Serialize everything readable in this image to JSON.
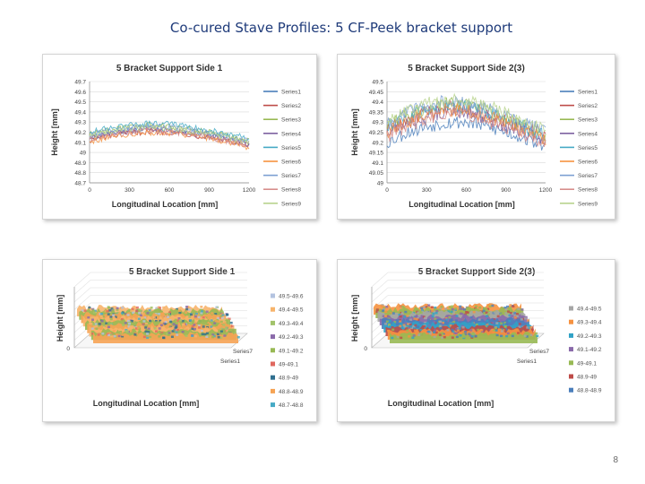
{
  "slide": {
    "title": "Co-cured Stave Profiles: 5 CF-Peek bracket support",
    "page_number": "8"
  },
  "chart_data": [
    {
      "type": "line",
      "title": "5 Bracket Support Side 1",
      "xlabel": "Longitudinal Location [mm]",
      "ylabel": "Height [mm]",
      "xlim": [
        0,
        1200
      ],
      "ylim": [
        48.7,
        49.7
      ],
      "x_ticks": [
        "0",
        "300",
        "600",
        "900",
        "1200"
      ],
      "y_ticks": [
        "49.7",
        "49.6",
        "49.5",
        "49.4",
        "49.3",
        "49.2",
        "49.1",
        "49",
        "48.9",
        "48.8",
        "48.7"
      ],
      "series": [
        {
          "name": "Series1",
          "color": "#4a7ebb",
          "x": [
            0,
            150,
            300,
            450,
            600,
            750,
            900,
            1050,
            1200
          ],
          "values": [
            49.15,
            49.19,
            49.22,
            49.24,
            49.23,
            49.2,
            49.18,
            49.14,
            49.1
          ]
        },
        {
          "name": "Series2",
          "color": "#be4b48",
          "x": [
            0,
            150,
            300,
            450,
            600,
            750,
            900,
            1050,
            1200
          ],
          "values": [
            49.12,
            49.16,
            49.19,
            49.21,
            49.2,
            49.18,
            49.15,
            49.11,
            49.06
          ]
        },
        {
          "name": "Series3",
          "color": "#98b954",
          "x": [
            0,
            150,
            300,
            450,
            600,
            750,
            900,
            1050,
            1200
          ],
          "values": [
            49.18,
            49.22,
            49.25,
            49.27,
            49.26,
            49.23,
            49.2,
            49.16,
            49.12
          ]
        },
        {
          "name": "Series4",
          "color": "#7d60a0",
          "x": [
            0,
            150,
            300,
            450,
            600,
            750,
            900,
            1050,
            1200
          ],
          "values": [
            49.14,
            49.18,
            49.21,
            49.23,
            49.22,
            49.19,
            49.16,
            49.12,
            49.08
          ]
        },
        {
          "name": "Series5",
          "color": "#46aac5",
          "x": [
            0,
            150,
            300,
            450,
            600,
            750,
            900,
            1050,
            1200
          ],
          "values": [
            49.2,
            49.24,
            49.27,
            49.29,
            49.28,
            49.25,
            49.22,
            49.18,
            49.14
          ]
        },
        {
          "name": "Series6",
          "color": "#f69240",
          "x": [
            0,
            150,
            300,
            450,
            600,
            750,
            900,
            1050,
            1200
          ],
          "values": [
            49.11,
            49.15,
            49.18,
            49.2,
            49.19,
            49.17,
            49.14,
            49.1,
            49.05
          ]
        },
        {
          "name": "Series7",
          "color": "#7c9fd2",
          "x": [
            0,
            150,
            300,
            450,
            600,
            750,
            900,
            1050,
            1200
          ],
          "values": [
            49.17,
            49.21,
            49.24,
            49.26,
            49.25,
            49.22,
            49.19,
            49.15,
            49.11
          ]
        },
        {
          "name": "Series8",
          "color": "#d78e8c",
          "x": [
            0,
            150,
            300,
            450,
            600,
            750,
            900,
            1050,
            1200
          ],
          "values": [
            49.13,
            49.17,
            49.2,
            49.22,
            49.21,
            49.18,
            49.15,
            49.11,
            49.07
          ]
        },
        {
          "name": "Series9",
          "color": "#b8d38d",
          "x": [
            0,
            150,
            300,
            450,
            600,
            750,
            900,
            1050,
            1200
          ],
          "values": [
            49.16,
            49.2,
            49.23,
            49.25,
            49.24,
            49.21,
            49.18,
            49.14,
            49.1
          ]
        }
      ],
      "legend": "right"
    },
    {
      "type": "line",
      "title": "5 Bracket Support Side 2(3)",
      "xlabel": "Longitudinal Location [mm]",
      "ylabel": "Height [mm]",
      "xlim": [
        0,
        1200
      ],
      "ylim": [
        49.0,
        49.5
      ],
      "x_ticks": [
        "0",
        "300",
        "600",
        "900",
        "1200"
      ],
      "y_ticks": [
        "49.5",
        "49.45",
        "49.4",
        "49.35",
        "49.3",
        "49.25",
        "49.2",
        "49.15",
        "49.1",
        "49.05",
        "49"
      ],
      "series": [
        {
          "name": "Series1",
          "color": "#4a7ebb",
          "x": [
            0,
            150,
            300,
            450,
            600,
            750,
            900,
            1050,
            1200
          ],
          "values": [
            49.2,
            49.25,
            49.28,
            49.3,
            49.3,
            49.28,
            49.25,
            49.22,
            49.18
          ]
        },
        {
          "name": "Series2",
          "color": "#be4b48",
          "x": [
            0,
            150,
            300,
            450,
            600,
            750,
            900,
            1050,
            1200
          ],
          "values": [
            49.26,
            49.31,
            49.35,
            49.37,
            49.37,
            49.34,
            49.3,
            49.27,
            49.23
          ]
        },
        {
          "name": "Series3",
          "color": "#98b954",
          "x": [
            0,
            150,
            300,
            450,
            600,
            750,
            900,
            1050,
            1200
          ],
          "values": [
            49.28,
            49.33,
            49.37,
            49.39,
            49.38,
            49.36,
            49.32,
            49.28,
            49.24
          ]
        },
        {
          "name": "Series4",
          "color": "#7d60a0",
          "x": [
            0,
            150,
            300,
            450,
            600,
            750,
            900,
            1050,
            1200
          ],
          "values": [
            49.24,
            49.29,
            49.33,
            49.35,
            49.35,
            49.32,
            49.28,
            49.25,
            49.21
          ]
        },
        {
          "name": "Series5",
          "color": "#46aac5",
          "x": [
            0,
            150,
            300,
            450,
            600,
            750,
            900,
            1050,
            1200
          ],
          "values": [
            49.27,
            49.32,
            49.36,
            49.38,
            49.37,
            49.35,
            49.31,
            49.27,
            49.23
          ]
        },
        {
          "name": "Series6",
          "color": "#f69240",
          "x": [
            0,
            150,
            300,
            450,
            600,
            750,
            900,
            1050,
            1200
          ],
          "values": [
            49.25,
            49.3,
            49.34,
            49.36,
            49.36,
            49.33,
            49.29,
            49.26,
            49.22
          ]
        },
        {
          "name": "Series7",
          "color": "#7c9fd2",
          "x": [
            0,
            150,
            300,
            450,
            600,
            750,
            900,
            1050,
            1200
          ],
          "values": [
            49.29,
            49.34,
            49.38,
            49.4,
            49.39,
            49.37,
            49.33,
            49.29,
            49.25
          ]
        },
        {
          "name": "Series8",
          "color": "#d78e8c",
          "x": [
            0,
            150,
            300,
            450,
            600,
            750,
            900,
            1050,
            1200
          ],
          "values": [
            49.23,
            49.28,
            49.32,
            49.34,
            49.34,
            49.31,
            49.27,
            49.24,
            49.2
          ]
        },
        {
          "name": "Series9",
          "color": "#b8d38d",
          "x": [
            0,
            150,
            300,
            450,
            600,
            750,
            900,
            1050,
            1200
          ],
          "values": [
            49.3,
            49.35,
            49.39,
            49.41,
            49.4,
            49.38,
            49.34,
            49.3,
            49.26
          ]
        }
      ],
      "legend": "right"
    },
    {
      "type": "area",
      "subtype": "3d-surface",
      "title": "5 Bracket Support Side 1",
      "xlabel": "Longitudinal Location [mm]",
      "ylabel": "Height [mm]",
      "zero_label": "0",
      "depth_labels": [
        "Series7",
        "Series1"
      ],
      "bands": [
        {
          "range": "49.5-49.6",
          "color": "#b3c3e0"
        },
        {
          "range": "49.4-49.5",
          "color": "#f7b46b"
        },
        {
          "range": "49.3-49.4",
          "color": "#a2c36b"
        },
        {
          "range": "49.2-49.3",
          "color": "#8a6aaa"
        },
        {
          "range": "49.1-49.2",
          "color": "#98b954"
        },
        {
          "range": "49-49.1",
          "color": "#e0685f"
        },
        {
          "range": "48.9-49",
          "color": "#2f6f8f"
        },
        {
          "range": "48.8-48.9",
          "color": "#f6a354"
        },
        {
          "range": "48.7-48.8",
          "color": "#46aac5"
        }
      ],
      "legend": "right"
    },
    {
      "type": "area",
      "subtype": "3d-surface",
      "title": "5 Bracket Support Side 2(3)",
      "xlabel": "Longitudinal Location [mm]",
      "ylabel": "Height [mm]",
      "zero_label": "0",
      "depth_labels": [
        "Series7",
        "Series1"
      ],
      "bands": [
        {
          "range": "49.4-49.5",
          "color": "#a6a6a6"
        },
        {
          "range": "49.3-49.4",
          "color": "#f69240"
        },
        {
          "range": "49.2-49.3",
          "color": "#31a2c6"
        },
        {
          "range": "49.1-49.2",
          "color": "#8a6aaa"
        },
        {
          "range": "49-49.1",
          "color": "#98b954"
        },
        {
          "range": "48.9-49",
          "color": "#be4b48"
        },
        {
          "range": "48.8-48.9",
          "color": "#4a7ebb"
        }
      ],
      "legend": "right"
    }
  ]
}
